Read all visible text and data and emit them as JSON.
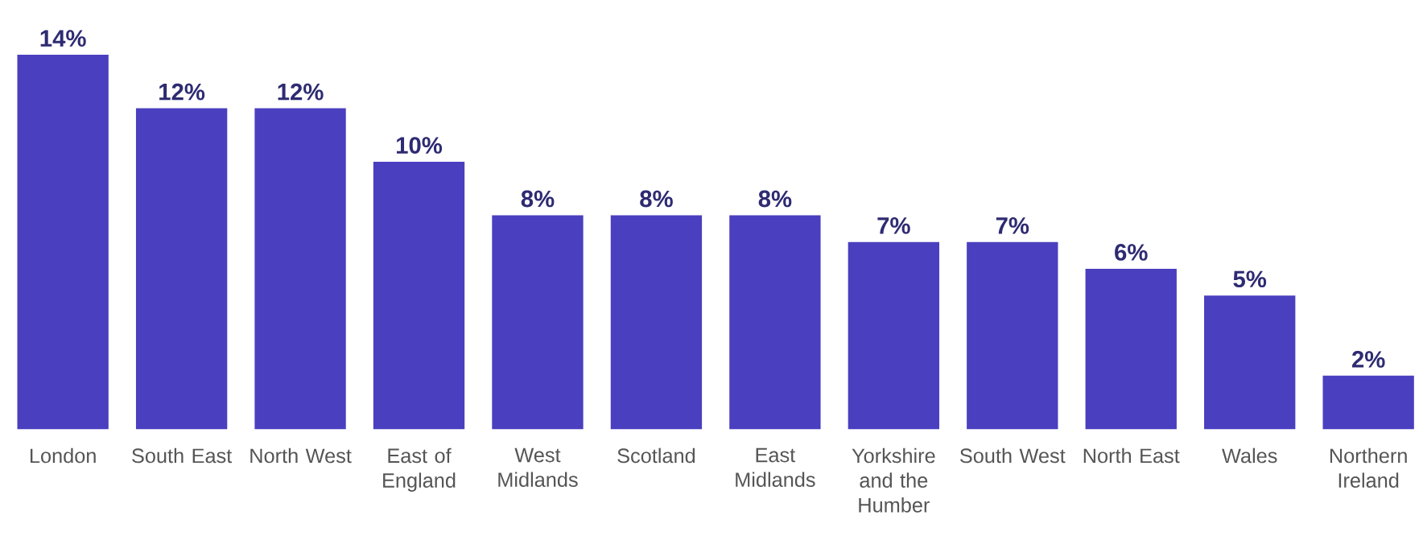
{
  "chart_data": {
    "type": "bar",
    "categories": [
      "London",
      "South East",
      "North West",
      "East of England",
      "West Midlands",
      "Scotland",
      "East Midlands",
      "Yorkshire and the Humber",
      "South West",
      "North East",
      "Wales",
      "Northern Ireland"
    ],
    "values": [
      14,
      12,
      12,
      10,
      8,
      8,
      8,
      7,
      7,
      6,
      5,
      2
    ],
    "value_labels": [
      "14%",
      "12%",
      "12%",
      "10%",
      "8%",
      "8%",
      "8%",
      "7%",
      "7%",
      "6%",
      "5%",
      "2%"
    ],
    "color": "#4a3fbf"
  }
}
